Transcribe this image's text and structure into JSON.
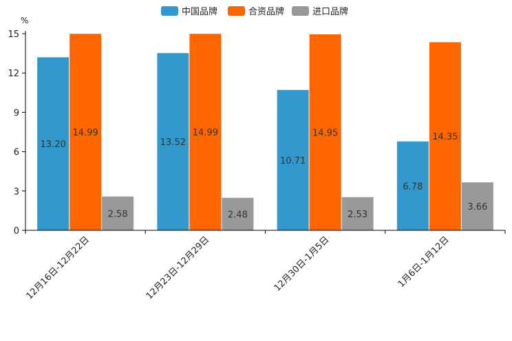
{
  "chart_data": {
    "type": "bar",
    "title": "",
    "xlabel": "",
    "ylabel": "%",
    "ylim": [
      0,
      15
    ],
    "yticks": [
      0,
      3,
      6,
      9,
      12,
      15
    ],
    "categories": [
      "12月16日-12月22日",
      "12月23日-12月29日",
      "12月30日-1月5日",
      "1月6日-1月12日"
    ],
    "legend_position": "top-center",
    "grid": false,
    "series": [
      {
        "name": "中国品牌",
        "color": "#3399cc",
        "values": [
          13.2,
          13.52,
          10.71,
          6.78
        ],
        "labels": [
          "13.20",
          "13.52",
          "10.71",
          "6.78"
        ]
      },
      {
        "name": "合资品牌",
        "color": "#ff6600",
        "values": [
          14.99,
          14.99,
          14.95,
          14.35
        ],
        "labels": [
          "14.99",
          "14.99",
          "14.95",
          "14.35"
        ]
      },
      {
        "name": "进口品牌",
        "color": "#999999",
        "values": [
          2.58,
          2.48,
          2.53,
          3.66
        ],
        "labels": [
          "2.58",
          "2.48",
          "2.53",
          "3.66"
        ]
      }
    ]
  }
}
